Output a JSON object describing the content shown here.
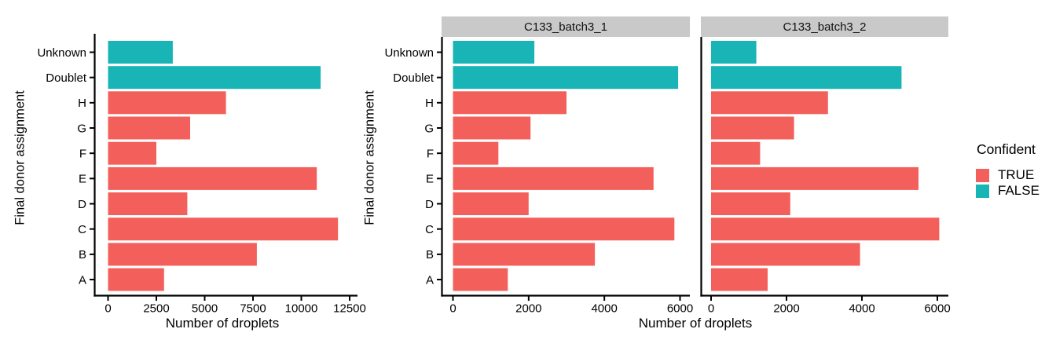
{
  "colors": {
    "confident_true": "#F3605B",
    "confident_false": "#19B4B6",
    "strip_bg": "#C9C9C9",
    "axis": "#000000",
    "text": "#000000"
  },
  "legend": {
    "title": "Confident",
    "items": [
      {
        "label": "TRUE",
        "color_key": "confident_true"
      },
      {
        "label": "FALSE",
        "color_key": "confident_false"
      }
    ],
    "position": "right"
  },
  "chart_data": [
    {
      "type": "bar",
      "orientation": "horizontal",
      "facet": null,
      "xlabel": "Number of droplets",
      "ylabel": "Final donor assignment",
      "categories": [
        "Unknown",
        "Doublet",
        "H",
        "G",
        "F",
        "E",
        "D",
        "C",
        "B",
        "A"
      ],
      "values": [
        3350,
        11000,
        6100,
        4250,
        2500,
        10800,
        4100,
        11900,
        7700,
        2900
      ],
      "confident": [
        false,
        false,
        true,
        true,
        true,
        true,
        true,
        true,
        true,
        true
      ],
      "xlim": [
        0,
        12900
      ],
      "xticks": [
        0,
        2500,
        5000,
        7500,
        10000,
        12500
      ],
      "grid": false,
      "show_y_labels": true
    },
    {
      "type": "bar",
      "orientation": "horizontal",
      "facet": "C133_batch3_1",
      "xlabel": "Number of droplets",
      "ylabel": "Final donor assignment",
      "categories": [
        "Unknown",
        "Doublet",
        "H",
        "G",
        "F",
        "E",
        "D",
        "C",
        "B",
        "A"
      ],
      "values": [
        2150,
        5950,
        3000,
        2050,
        1200,
        5300,
        2000,
        5850,
        3750,
        1450
      ],
      "confident": [
        false,
        false,
        true,
        true,
        true,
        true,
        true,
        true,
        true,
        true
      ],
      "xlim": [
        0,
        6260
      ],
      "xticks": [
        0,
        2000,
        4000,
        6000
      ],
      "grid": false,
      "show_y_labels": true
    },
    {
      "type": "bar",
      "orientation": "horizontal",
      "facet": "C133_batch3_2",
      "xlabel": "Number of droplets",
      "ylabel": "Final donor assignment",
      "categories": [
        "Unknown",
        "Doublet",
        "H",
        "G",
        "F",
        "E",
        "D",
        "C",
        "B",
        "A"
      ],
      "values": [
        1200,
        5050,
        3100,
        2200,
        1300,
        5500,
        2100,
        6050,
        3950,
        1500
      ],
      "confident": [
        false,
        false,
        true,
        true,
        true,
        true,
        true,
        true,
        true,
        true
      ],
      "xlim": [
        0,
        6290
      ],
      "xticks": [
        0,
        2000,
        4000,
        6000
      ],
      "grid": false,
      "show_y_labels": false
    }
  ]
}
